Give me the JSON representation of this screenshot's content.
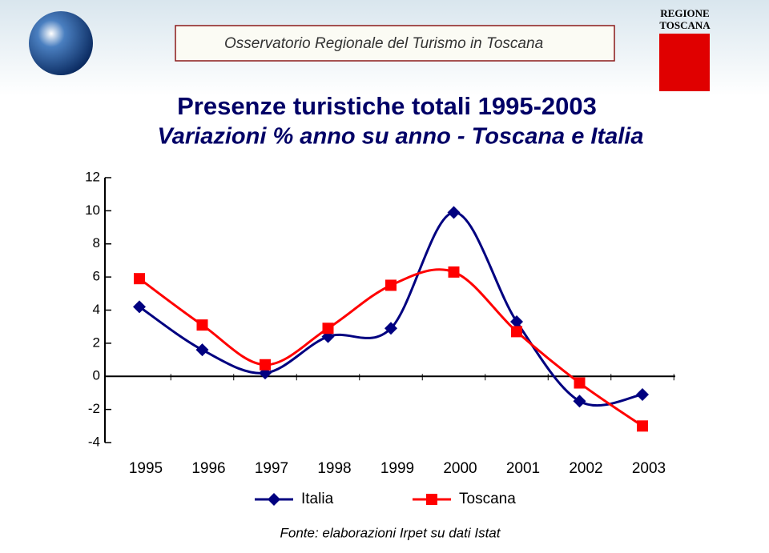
{
  "header": {
    "banner": "Osservatorio Regionale del Turismo in Toscana",
    "logo_lines": [
      "REGIONE",
      "TOSCANA"
    ]
  },
  "chart_data": {
    "type": "line",
    "title": "Presenze turistiche totali 1995-2003",
    "subtitle": "Variazioni % anno su anno - Toscana e Italia",
    "categories": [
      "1995",
      "1996",
      "1997",
      "1998",
      "1999",
      "2000",
      "2001",
      "2002",
      "2003"
    ],
    "series": [
      {
        "name": "Italia",
        "color": "#000080",
        "marker": "diamond",
        "values": [
          4.2,
          1.6,
          0.2,
          2.4,
          2.9,
          9.9,
          3.3,
          -1.5,
          -1.1
        ]
      },
      {
        "name": "Toscana",
        "color": "#ff0000",
        "marker": "square",
        "values": [
          5.9,
          3.1,
          0.7,
          2.9,
          5.5,
          6.3,
          2.7,
          -0.4,
          -3.0
        ]
      }
    ],
    "ylim": [
      -4,
      12
    ],
    "yticks": [
      -4,
      -2,
      0,
      2,
      4,
      6,
      8,
      10,
      12
    ],
    "smooth": true,
    "note": "Fonte: elaborazioni Irpet su dati Istat"
  }
}
